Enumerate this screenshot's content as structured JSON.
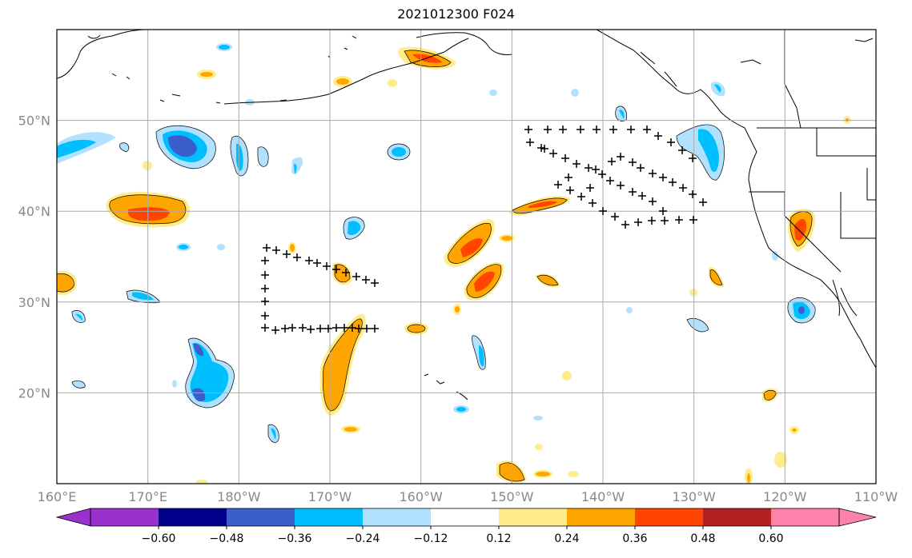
{
  "title": "2021012300 F024",
  "map": {
    "lat_ticks": [
      {
        "value": 50,
        "label": "50°N"
      },
      {
        "value": 40,
        "label": "40°N"
      },
      {
        "value": 30,
        "label": "30°N"
      },
      {
        "value": 20,
        "label": "20°N"
      }
    ],
    "lon_ticks": [
      {
        "value": 160,
        "label": "160°E"
      },
      {
        "value": 170,
        "label": "170°E"
      },
      {
        "value": 180,
        "label": "180°W"
      },
      {
        "value": 190,
        "label": "170°W"
      },
      {
        "value": 200,
        "label": "160°W"
      },
      {
        "value": 210,
        "label": "150°W"
      },
      {
        "value": 220,
        "label": "140°W"
      },
      {
        "value": 230,
        "label": "130°W"
      },
      {
        "value": 240,
        "label": "120°W"
      },
      {
        "value": 250,
        "label": "110°W"
      }
    ],
    "lon_range": [
      160,
      250
    ],
    "lat_range": [
      10,
      60
    ],
    "grid": true
  },
  "colorbar": {
    "levels": [
      "-0.60",
      "-0.48",
      "-0.36",
      "-0.24",
      "-0.12",
      "0.12",
      "0.24",
      "0.36",
      "0.48",
      "0.60"
    ],
    "colors": [
      "#9932cc",
      "#00008b",
      "#3a5fcd",
      "#00bfff",
      "#b0e2ff",
      "#ffffff",
      "#ffec8b",
      "#ffa500",
      "#ff4500",
      "#b22222",
      "#ff82ab"
    ],
    "extend": "both"
  },
  "palette": {
    "neg_light": "#b0e2ff",
    "neg_mid": "#00bfff",
    "neg_strong": "#3a5fcd",
    "pos_light": "#ffec8b",
    "pos_mid": "#ffa500",
    "pos_strong": "#ff4500"
  }
}
